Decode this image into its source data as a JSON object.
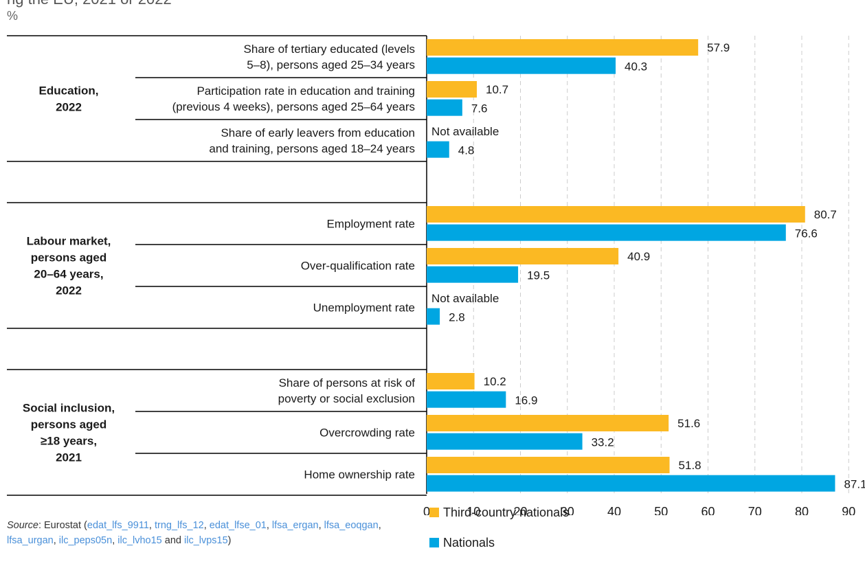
{
  "title_fragment": "ng the EU, 2021 or 2022",
  "unit_label": "%",
  "colors": {
    "third_country": "#fbb923",
    "nationals": "#00a6e2",
    "grid": "#cccccc",
    "axis": "#000000"
  },
  "source": {
    "prefix": "Source",
    "org": ": Eurostat (",
    "codes": [
      "edat_lfs_9911",
      "trng_lfs_12",
      "edat_lfse_01",
      "lfsa_ergan",
      "lfsa_eoqgan",
      "lfsa_urgan",
      "ilc_peps05n",
      "ilc_lvho15",
      "ilc_lvps15"
    ],
    "and_text": " and ",
    "close": ")"
  },
  "chart_data": {
    "type": "bar",
    "orientation": "horizontal",
    "xlim": [
      0,
      90
    ],
    "xticks": [
      0,
      10,
      20,
      30,
      40,
      50,
      60,
      70,
      80,
      90
    ],
    "grid": "vertical dashed",
    "legend_position": "bottom",
    "series": [
      {
        "name": "Third-country nationals",
        "color": "#fbb923"
      },
      {
        "name": "Nationals",
        "color": "#00a6e2"
      }
    ],
    "groups": [
      {
        "label_lines": [
          "Education,",
          "2022"
        ],
        "indicators": [
          {
            "label_lines": [
              "Share of tertiary educated (levels",
              "5–8), persons aged 25–34 years"
            ],
            "third_country": 57.9,
            "nationals": 40.3,
            "third_country_label": "57.9",
            "nationals_label": "40.3"
          },
          {
            "label_lines": [
              "Participation rate in education and training",
              "(previous 4 weeks), persons aged 25–64 years"
            ],
            "third_country": 10.7,
            "nationals": 7.6,
            "third_country_label": "10.7",
            "nationals_label": "7.6"
          },
          {
            "label_lines": [
              "Share of early leavers from education",
              "and training, persons aged 18–24 years"
            ],
            "third_country": null,
            "nationals": 4.8,
            "third_country_label": "Not available",
            "nationals_label": "4.8"
          }
        ]
      },
      {
        "label_lines": [
          "Labour market,",
          "persons aged",
          "20–64 years,",
          "2022"
        ],
        "indicators": [
          {
            "label_lines": [
              "Employment rate"
            ],
            "third_country": 80.7,
            "nationals": 76.6,
            "third_country_label": "80.7",
            "nationals_label": "76.6"
          },
          {
            "label_lines": [
              "Over-qualification rate"
            ],
            "third_country": 40.9,
            "nationals": 19.5,
            "third_country_label": "40.9",
            "nationals_label": "19.5"
          },
          {
            "label_lines": [
              "Unemployment rate"
            ],
            "third_country": null,
            "nationals": 2.8,
            "third_country_label": "Not available",
            "nationals_label": "2.8"
          }
        ]
      },
      {
        "label_lines": [
          "Social inclusion,",
          "persons aged",
          "≥18 years,",
          "2021"
        ],
        "indicators": [
          {
            "label_lines": [
              "Share of persons at risk of",
              "poverty or social exclusion"
            ],
            "third_country": 10.2,
            "nationals": 16.9,
            "third_country_label": "10.2",
            "nationals_label": "16.9"
          },
          {
            "label_lines": [
              "Overcrowding rate"
            ],
            "third_country": 51.6,
            "nationals": 33.2,
            "third_country_label": "51.6",
            "nationals_label": "33.2"
          },
          {
            "label_lines": [
              "Home ownership rate"
            ],
            "third_country": 51.8,
            "nationals": 87.1,
            "third_country_label": "51.8",
            "nationals_label": "87.1"
          }
        ]
      }
    ]
  }
}
